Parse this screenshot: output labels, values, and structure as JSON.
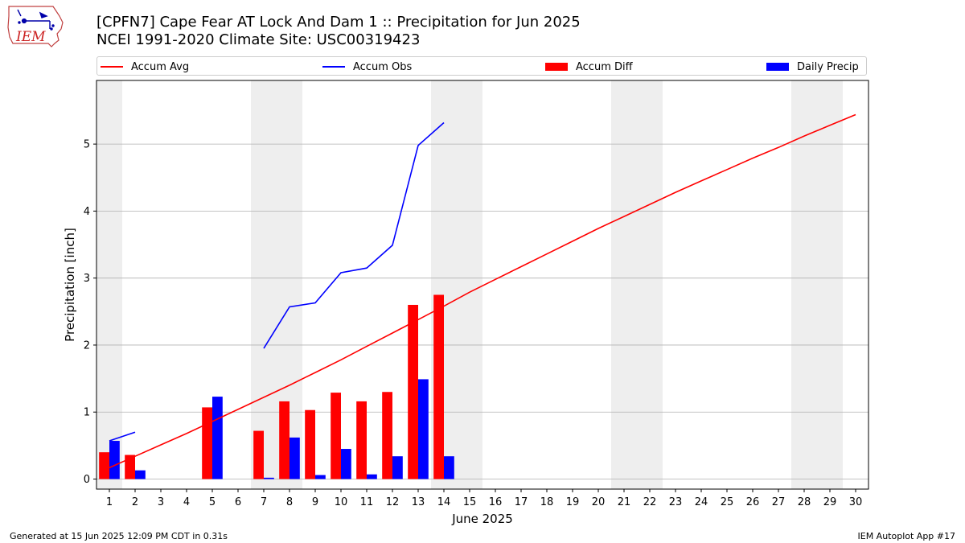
{
  "header": {
    "title_line1": "[CPFN7] Cape Fear  AT Lock And Dam 1 :: Precipitation for Jun 2025",
    "title_line2": "NCEI 1991-2020 Climate Site: USC00319423",
    "logo_text": "IEM"
  },
  "footer": {
    "left": "Generated at 15 Jun 2025 12:09 PM CDT in 0.31s",
    "right": "IEM Autoplot App #17"
  },
  "colors": {
    "accum_avg": "#ff0000",
    "accum_obs": "#0000ff",
    "accum_diff": "#ff0000",
    "daily_precip": "#0000ff",
    "weekend_shade": "#eeeeee",
    "grid": "#b0b0b0"
  },
  "chart_data": {
    "type": "bar",
    "xlabel": "June 2025",
    "ylabel": "Precipitation [inch]",
    "xlim": [
      0.5,
      30.5
    ],
    "ylim": [
      -0.15,
      5.95
    ],
    "yticks": [
      0,
      1,
      2,
      3,
      4,
      5
    ],
    "x": [
      1,
      2,
      3,
      4,
      5,
      6,
      7,
      8,
      9,
      10,
      11,
      12,
      13,
      14,
      15,
      16,
      17,
      18,
      19,
      20,
      21,
      22,
      23,
      24,
      25,
      26,
      27,
      28,
      29,
      30
    ],
    "weekend_spans": [
      [
        0.5,
        1.5
      ],
      [
        6.5,
        8.5
      ],
      [
        13.5,
        15.5
      ],
      [
        20.5,
        22.5
      ],
      [
        27.5,
        29.5
      ]
    ],
    "grid": "horizontal",
    "legend_position": "top",
    "series": [
      {
        "name": "Accum Avg",
        "kind": "line",
        "x": [
          1,
          2,
          3,
          4,
          5,
          6,
          7,
          8,
          9,
          10,
          11,
          12,
          13,
          14,
          15,
          16,
          17,
          18,
          19,
          20,
          21,
          22,
          23,
          24,
          25,
          26,
          27,
          28,
          29,
          30
        ],
        "values": [
          0.17,
          0.34,
          0.51,
          0.68,
          0.86,
          1.04,
          1.22,
          1.4,
          1.59,
          1.78,
          1.98,
          2.18,
          2.38,
          2.58,
          2.79,
          2.98,
          3.17,
          3.36,
          3.55,
          3.74,
          3.92,
          4.1,
          4.28,
          4.45,
          4.62,
          4.79,
          4.95,
          5.12,
          5.28,
          5.44
        ]
      },
      {
        "name": "Accum Obs",
        "kind": "line",
        "segments": [
          {
            "x": [
              1,
              2
            ],
            "values": [
              0.57,
              0.7
            ]
          },
          {
            "x": [
              7,
              8,
              9,
              10,
              11,
              12,
              13,
              14
            ],
            "values": [
              1.95,
              2.57,
              2.63,
              3.08,
              3.15,
              3.49,
              4.98,
              5.32
            ]
          }
        ]
      },
      {
        "name": "Accum Diff",
        "kind": "bar",
        "x": [
          1,
          2,
          5,
          7,
          8,
          9,
          10,
          11,
          12,
          13,
          14
        ],
        "values": [
          0.4,
          0.36,
          1.07,
          0.72,
          1.16,
          1.03,
          1.29,
          1.16,
          1.3,
          2.6,
          2.75
        ]
      },
      {
        "name": "Daily Precip",
        "kind": "bar",
        "x": [
          1,
          2,
          5,
          7,
          8,
          9,
          10,
          11,
          12,
          13,
          14
        ],
        "values": [
          0.57,
          0.13,
          1.23,
          0.02,
          0.62,
          0.06,
          0.45,
          0.07,
          0.34,
          1.49,
          0.34
        ]
      }
    ]
  }
}
